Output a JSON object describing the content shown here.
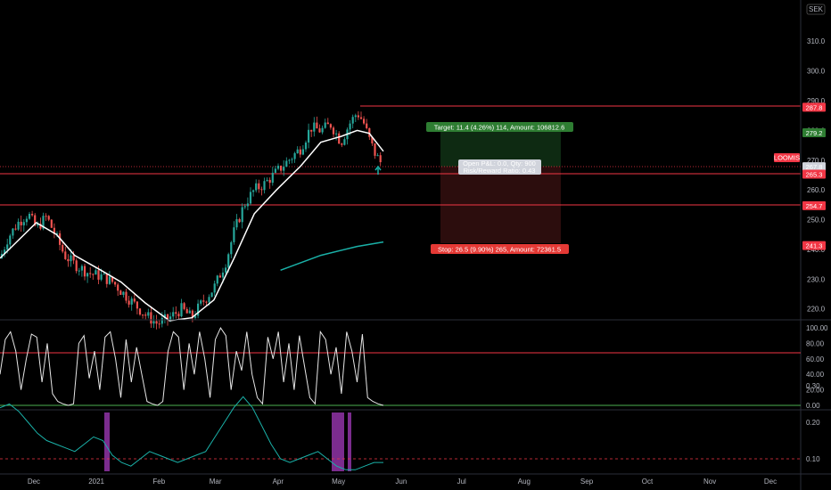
{
  "currency_button": "SEK",
  "colors": {
    "background": "#000000",
    "up": "#26a69a",
    "down": "#ef5350",
    "level_line": "#f23645",
    "ma_fast": "#ffffff",
    "ma_slow": "#1ab1a8",
    "profit_zone": "#0e2e14",
    "loss_zone": "#2e1010",
    "stoch": "#e6e6e6",
    "oscillator": "#1ab1a8",
    "highlight_bar": "#7b2c8e"
  },
  "price_axis": {
    "ticks": [
      "310.0",
      "300.0",
      "290.0",
      "280.0",
      "270.0",
      "260.0",
      "250.0",
      "240.0",
      "230.0",
      "220.0"
    ]
  },
  "price_labels": [
    {
      "text": "287.8",
      "value": 287.8,
      "color": "#f23645"
    },
    {
      "text": "279.2",
      "value": 279.2,
      "color": "#2e7d32"
    },
    {
      "text": "267.8",
      "value": 267.8,
      "color": "#d1d4dc"
    },
    {
      "text": "265.3",
      "value": 265.3,
      "color": "#f23645"
    },
    {
      "text": "254.7",
      "value": 254.7,
      "color": "#f23645"
    },
    {
      "text": "241.3",
      "value": 241.3,
      "color": "#f23645"
    }
  ],
  "symbol_tag": "LOOMIS",
  "position_tool": {
    "target_text": "Target: 11.4 (4.26%) 114, Amount: 106812.6",
    "stop_text": "Stop: 26.5 (9.90%) 265, Amount: 72361.5",
    "open_text": "Open P&L: 0.0, Qty: 900",
    "ratio_text": "Risk/Reward Ratio: 0.43",
    "entry": 267.8,
    "target": 279.2,
    "stop": 241.3
  },
  "stoch_axis": {
    "ticks": [
      "100.00",
      "80.00",
      "60.00",
      "40.00",
      "20.00",
      "0.00"
    ]
  },
  "osc_axis": {
    "ticks": [
      "0.30",
      "0.20",
      "0.10"
    ]
  },
  "time_axis": {
    "labels": [
      "Dec",
      "2021",
      "Feb",
      "Mar",
      "Apr",
      "May",
      "Jun",
      "Jul",
      "Aug",
      "Sep",
      "Oct",
      "Nov",
      "Dec"
    ]
  },
  "chart_data": {
    "type": "candlestick",
    "symbol": "LOOMIS",
    "currency": "SEK",
    "horizontal_levels": [
      287.8,
      265.3,
      254.7
    ],
    "close_path": [
      {
        "x": "2020-11-16",
        "y": 237
      },
      {
        "x": "2020-11-20",
        "y": 244
      },
      {
        "x": "2020-11-25",
        "y": 249
      },
      {
        "x": "2020-11-30",
        "y": 252
      },
      {
        "x": "2020-12-04",
        "y": 247
      },
      {
        "x": "2020-12-09",
        "y": 251
      },
      {
        "x": "2020-12-14",
        "y": 244
      },
      {
        "x": "2020-12-18",
        "y": 238
      },
      {
        "x": "2020-12-23",
        "y": 235
      },
      {
        "x": "2020-12-30",
        "y": 232
      },
      {
        "x": "2021-01-05",
        "y": 231
      },
      {
        "x": "2021-01-11",
        "y": 229
      },
      {
        "x": "2021-01-15",
        "y": 226
      },
      {
        "x": "2021-01-21",
        "y": 222
      },
      {
        "x": "2021-01-27",
        "y": 218
      },
      {
        "x": "2021-02-02",
        "y": 215
      },
      {
        "x": "2021-02-08",
        "y": 217
      },
      {
        "x": "2021-02-14",
        "y": 220
      },
      {
        "x": "2021-02-19",
        "y": 217
      },
      {
        "x": "2021-02-24",
        "y": 222
      },
      {
        "x": "2021-03-02",
        "y": 227
      },
      {
        "x": "2021-03-08",
        "y": 236
      },
      {
        "x": "2021-03-12",
        "y": 246
      },
      {
        "x": "2021-03-17",
        "y": 255
      },
      {
        "x": "2021-03-22",
        "y": 260
      },
      {
        "x": "2021-03-27",
        "y": 262
      },
      {
        "x": "2021-04-02",
        "y": 266
      },
      {
        "x": "2021-04-08",
        "y": 270
      },
      {
        "x": "2021-04-14",
        "y": 274
      },
      {
        "x": "2021-04-19",
        "y": 281
      },
      {
        "x": "2021-04-24",
        "y": 280
      },
      {
        "x": "2021-04-29",
        "y": 282
      },
      {
        "x": "2021-05-04",
        "y": 276
      },
      {
        "x": "2021-05-08",
        "y": 282
      },
      {
        "x": "2021-05-12",
        "y": 286
      },
      {
        "x": "2021-05-15",
        "y": 283
      },
      {
        "x": "2021-05-18",
        "y": 277
      },
      {
        "x": "2021-05-21",
        "y": 272
      },
      {
        "x": "2021-05-25",
        "y": 267.8
      }
    ],
    "ma_fast": [
      {
        "x": "2020-11-16",
        "y": 237
      },
      {
        "x": "2020-11-25",
        "y": 243
      },
      {
        "x": "2020-12-04",
        "y": 249
      },
      {
        "x": "2020-12-14",
        "y": 245
      },
      {
        "x": "2020-12-23",
        "y": 238
      },
      {
        "x": "2021-01-05",
        "y": 233
      },
      {
        "x": "2021-01-15",
        "y": 229
      },
      {
        "x": "2021-01-27",
        "y": 222
      },
      {
        "x": "2021-02-08",
        "y": 216
      },
      {
        "x": "2021-02-19",
        "y": 217
      },
      {
        "x": "2021-03-02",
        "y": 223
      },
      {
        "x": "2021-03-12",
        "y": 237
      },
      {
        "x": "2021-03-22",
        "y": 252
      },
      {
        "x": "2021-04-02",
        "y": 260
      },
      {
        "x": "2021-04-14",
        "y": 268
      },
      {
        "x": "2021-04-24",
        "y": 276
      },
      {
        "x": "2021-05-04",
        "y": 278
      },
      {
        "x": "2021-05-12",
        "y": 280
      },
      {
        "x": "2021-05-18",
        "y": 279
      },
      {
        "x": "2021-05-25",
        "y": 273
      }
    ],
    "ma_slow": [
      {
        "x": "2021-04-04",
        "y": 233
      },
      {
        "x": "2021-04-24",
        "y": 238
      },
      {
        "x": "2021-05-12",
        "y": 241
      },
      {
        "x": "2021-05-25",
        "y": 242.5
      }
    ],
    "stochastic": {
      "levels": [
        70,
        0
      ],
      "ylim": [
        0,
        100
      ],
      "values": [
        40,
        85,
        95,
        70,
        20,
        60,
        92,
        88,
        30,
        80,
        15,
        5,
        2,
        0,
        2,
        80,
        90,
        35,
        70,
        20,
        88,
        95,
        60,
        10,
        85,
        30,
        75,
        40,
        5,
        2,
        0,
        5,
        70,
        95,
        88,
        20,
        80,
        40,
        95,
        60,
        10,
        85,
        100,
        90,
        20,
        70,
        45,
        95,
        40,
        10,
        2,
        88,
        60,
        95,
        30,
        80,
        20,
        90,
        50,
        10,
        2,
        95,
        85,
        40,
        75,
        15,
        95,
        70,
        30,
        92,
        10,
        5,
        2,
        0
      ]
    },
    "oscillator": {
      "reference_level": 0.1,
      "ylim": [
        0.06,
        0.32
      ],
      "values": [
        0.24,
        0.25,
        0.23,
        0.2,
        0.17,
        0.15,
        0.14,
        0.13,
        0.12,
        0.14,
        0.16,
        0.15,
        0.11,
        0.09,
        0.08,
        0.1,
        0.12,
        0.11,
        0.1,
        0.09,
        0.1,
        0.11,
        0.12,
        0.16,
        0.2,
        0.24,
        0.27,
        0.24,
        0.19,
        0.14,
        0.1,
        0.09,
        0.1,
        0.11,
        0.12,
        0.1,
        0.08,
        0.07,
        0.07,
        0.08,
        0.09,
        0.09
      ]
    }
  }
}
